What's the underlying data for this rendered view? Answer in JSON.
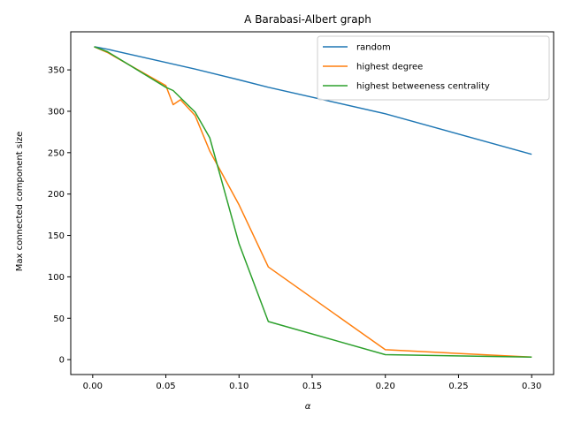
{
  "chart_data": {
    "type": "line",
    "title": "A Barabasi-Albert graph",
    "xlabel": "α",
    "ylabel": "Max connected component size",
    "xlim": [
      -0.015,
      0.315
    ],
    "ylim": [
      -18,
      396
    ],
    "xticks": [
      0.0,
      0.05,
      0.1,
      0.15,
      0.2,
      0.25,
      0.3
    ],
    "xtick_labels": [
      "0.00",
      "0.05",
      "0.10",
      "0.15",
      "0.20",
      "0.25",
      "0.30"
    ],
    "yticks": [
      0,
      50,
      100,
      150,
      200,
      250,
      300,
      350
    ],
    "ytick_labels": [
      "0",
      "50",
      "100",
      "150",
      "200",
      "250",
      "300",
      "350"
    ],
    "grid": false,
    "legend_position": "upper-right",
    "series": [
      {
        "name": "random",
        "color": "#1f77b4",
        "x": [
          0.001,
          0.01,
          0.05,
          0.07,
          0.1,
          0.12,
          0.2,
          0.3
        ],
        "y": [
          378,
          375,
          359,
          351,
          338,
          329,
          297,
          248
        ]
      },
      {
        "name": "highest degree",
        "color": "#ff7f0e",
        "x": [
          0.001,
          0.01,
          0.05,
          0.055,
          0.06,
          0.07,
          0.08,
          0.1,
          0.12,
          0.2,
          0.3
        ],
        "y": [
          378,
          371,
          331,
          308,
          314,
          295,
          252,
          187,
          112,
          12,
          3
        ]
      },
      {
        "name": "highest betweeness centrality",
        "color": "#2ca02c",
        "x": [
          0.001,
          0.01,
          0.05,
          0.055,
          0.07,
          0.08,
          0.1,
          0.12,
          0.2,
          0.3
        ],
        "y": [
          378,
          372,
          329,
          325,
          299,
          268,
          140,
          46,
          6,
          3
        ]
      }
    ]
  }
}
